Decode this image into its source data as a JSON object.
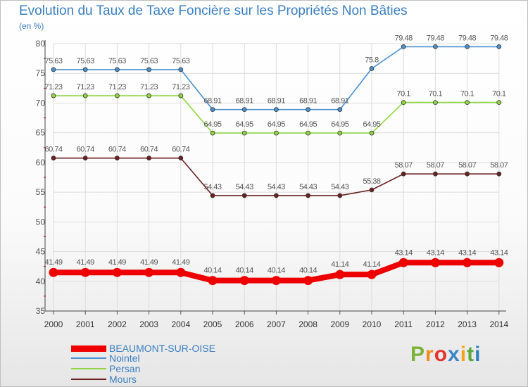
{
  "title": "Evolution du Taux de Taxe Foncière sur les Propriétés Non Bâties",
  "unit": "(en %)",
  "brand": {
    "letters": [
      "P",
      "r",
      "o",
      "x",
      "i",
      "t",
      "i"
    ],
    "colors": [
      "#7bb23a",
      "#f08a1c",
      "#e5322e",
      "#3b86c6",
      "#f5a31c",
      "#58a83a",
      "#2e7fc0"
    ]
  },
  "chart_data": {
    "type": "line",
    "title": "Evolution du Taux de Taxe Foncière sur les Propriétés Non Bâties",
    "ylabel": "(en %)",
    "xlabel": "",
    "ylim": [
      35,
      80
    ],
    "yticks": [
      35,
      40,
      45,
      50,
      55,
      60,
      65,
      70,
      75,
      80
    ],
    "ytick_labels": [
      "35",
      "40",
      "45",
      "50",
      "55",
      "60",
      "65",
      "70",
      "75",
      "80"
    ],
    "categories": [
      "2000",
      "2001",
      "2002",
      "2003",
      "2004",
      "2005",
      "2006",
      "2007",
      "2008",
      "2009",
      "2010",
      "2011",
      "2012",
      "2013",
      "2014"
    ],
    "grid": true,
    "series": [
      {
        "name": "BEAUMONT-SUR-OISE",
        "color": "#ee0000",
        "emphasis": true,
        "values": [
          41.49,
          41.49,
          41.49,
          41.49,
          41.49,
          40.14,
          40.14,
          40.14,
          40.14,
          41.14,
          41.14,
          43.14,
          43.14,
          43.14,
          43.14
        ],
        "labels": [
          "41.49",
          "41.49",
          "41.49",
          "41.49",
          "41.49",
          "40.14",
          "40.14",
          "40.14",
          "40.14",
          "41.14",
          "41.14",
          "43.14",
          "43.14",
          "43.14",
          "43.14"
        ]
      },
      {
        "name": "Nointel",
        "color": "#4a8fd0",
        "values": [
          75.63,
          75.63,
          75.63,
          75.63,
          75.63,
          68.91,
          68.91,
          68.91,
          68.91,
          68.91,
          75.8,
          79.48,
          79.48,
          79.48,
          79.48
        ],
        "labels": [
          "75.63",
          "75.63",
          "75.63",
          "75.63",
          "75.63",
          "68.91",
          "68.91",
          "68.91",
          "68.91",
          "68.91",
          "75.8",
          "79.48",
          "79.48",
          "79.48",
          "79.48"
        ]
      },
      {
        "name": "Persan",
        "color": "#8fd642",
        "values": [
          71.23,
          71.23,
          71.23,
          71.23,
          71.23,
          64.95,
          64.95,
          64.95,
          64.95,
          64.95,
          64.95,
          70.1,
          70.1,
          70.1,
          70.1
        ],
        "labels": [
          "71.23",
          "71.23",
          "71.23",
          "71.23",
          "71.23",
          "64.95",
          "64.95",
          "64.95",
          "64.95",
          "64.95",
          "64.95",
          "70.1",
          "70.1",
          "70.1",
          "70.1"
        ]
      },
      {
        "name": "Mours",
        "color": "#6b1f1f",
        "values": [
          60.74,
          60.74,
          60.74,
          60.74,
          60.74,
          54.43,
          54.43,
          54.43,
          54.43,
          54.43,
          55.38,
          58.07,
          58.07,
          58.07,
          58.07
        ],
        "labels": [
          "60.74",
          "60.74",
          "60.74",
          "60.74",
          "60.74",
          "54.43",
          "54.43",
          "54.43",
          "54.43",
          "54.43",
          "55.38",
          "58.07",
          "58.07",
          "58.07",
          "58.07"
        ]
      }
    ]
  }
}
